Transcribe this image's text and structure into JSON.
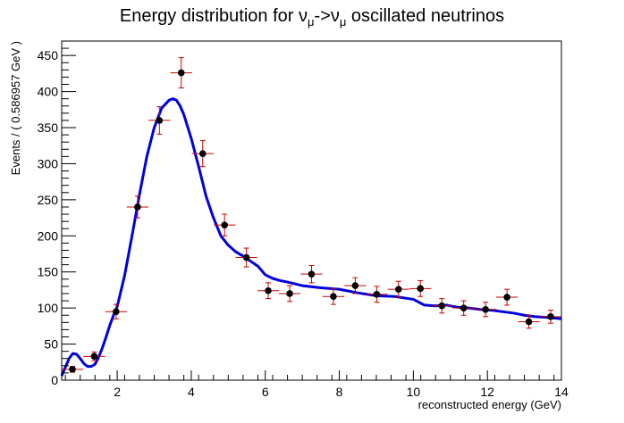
{
  "chart_data": {
    "type": "scatter",
    "title": "Energy distribution for ν_μ->ν_μ oscillated neutrinos",
    "title_parts": {
      "prefix": "Energy distribution for ν",
      "sub1": "μ",
      "mid": "->ν",
      "sub2": "μ",
      "suffix": " oscillated neutrinos"
    },
    "xlabel": "reconstructed energy (GeV)",
    "ylabel": "Events / ( 0.586957 GeV )",
    "xlim": [
      0.5,
      14
    ],
    "ylim": [
      0,
      470
    ],
    "x_ticks": [
      2,
      4,
      6,
      8,
      10,
      12,
      14
    ],
    "x_tick_labels": [
      "2",
      "4",
      "6",
      "8",
      "10",
      "12",
      "14"
    ],
    "y_ticks": [
      0,
      50,
      100,
      150,
      200,
      250,
      300,
      350,
      400,
      450
    ],
    "y_tick_labels": [
      "0",
      "50",
      "100",
      "150",
      "200",
      "250",
      "300",
      "350",
      "400",
      "450"
    ],
    "grid": false,
    "legend": "none",
    "colors": {
      "points": "#000000",
      "error_bars": "#cc0000",
      "fit_curve": "#0000dd",
      "frame": "#000000"
    },
    "x_bin_halfwidth": 0.2935,
    "series": [
      {
        "type": "points_with_errors",
        "x": [
          0.79,
          1.38,
          1.97,
          2.55,
          3.14,
          3.73,
          4.31,
          4.9,
          5.49,
          6.08,
          6.66,
          7.25,
          7.84,
          8.43,
          9.01,
          9.6,
          10.19,
          10.77,
          11.36,
          11.95,
          12.53,
          13.12,
          13.71
        ],
        "y": [
          15,
          33,
          95,
          240,
          360,
          426,
          314,
          215,
          170,
          124,
          120,
          147,
          116,
          131,
          119,
          126,
          127,
          103,
          100,
          98,
          115,
          81,
          88
        ],
        "yerr": [
          4,
          6,
          10,
          15,
          19,
          21,
          18,
          15,
          13,
          11,
          11,
          12,
          11,
          11,
          11,
          11,
          11,
          10,
          10,
          10,
          11,
          9,
          9
        ]
      },
      {
        "type": "curve",
        "x": [
          0.5,
          0.6,
          0.7,
          0.8,
          0.9,
          1.0,
          1.1,
          1.2,
          1.3,
          1.4,
          1.5,
          1.6,
          1.7,
          1.8,
          1.9,
          2.0,
          2.2,
          2.4,
          2.6,
          2.8,
          3.0,
          3.2,
          3.4,
          3.5,
          3.6,
          3.7,
          3.8,
          4.0,
          4.2,
          4.4,
          4.6,
          4.8,
          5.0,
          5.2,
          5.4,
          5.6,
          5.8,
          6.0,
          6.2,
          6.4,
          6.6,
          7.0,
          7.5,
          8.0,
          8.5,
          9.0,
          9.5,
          10.0,
          10.3,
          10.6,
          10.9,
          11.2,
          11.5,
          11.8,
          12.1,
          12.4,
          12.7,
          13.0,
          13.3,
          13.6,
          14.0
        ],
        "y": [
          6,
          18,
          30,
          37,
          36,
          30,
          23,
          19,
          19,
          22,
          32,
          45,
          60,
          76,
          90,
          102,
          145,
          200,
          257,
          310,
          350,
          377,
          388,
          390,
          388,
          380,
          368,
          335,
          296,
          255,
          225,
          200,
          187,
          178,
          172,
          165,
          158,
          146,
          141,
          138,
          136,
          131,
          128,
          126,
          121,
          117,
          116,
          112,
          104,
          103,
          104,
          101,
          100,
          98,
          97,
          95,
          93,
          90,
          88,
          87,
          85
        ]
      }
    ]
  }
}
